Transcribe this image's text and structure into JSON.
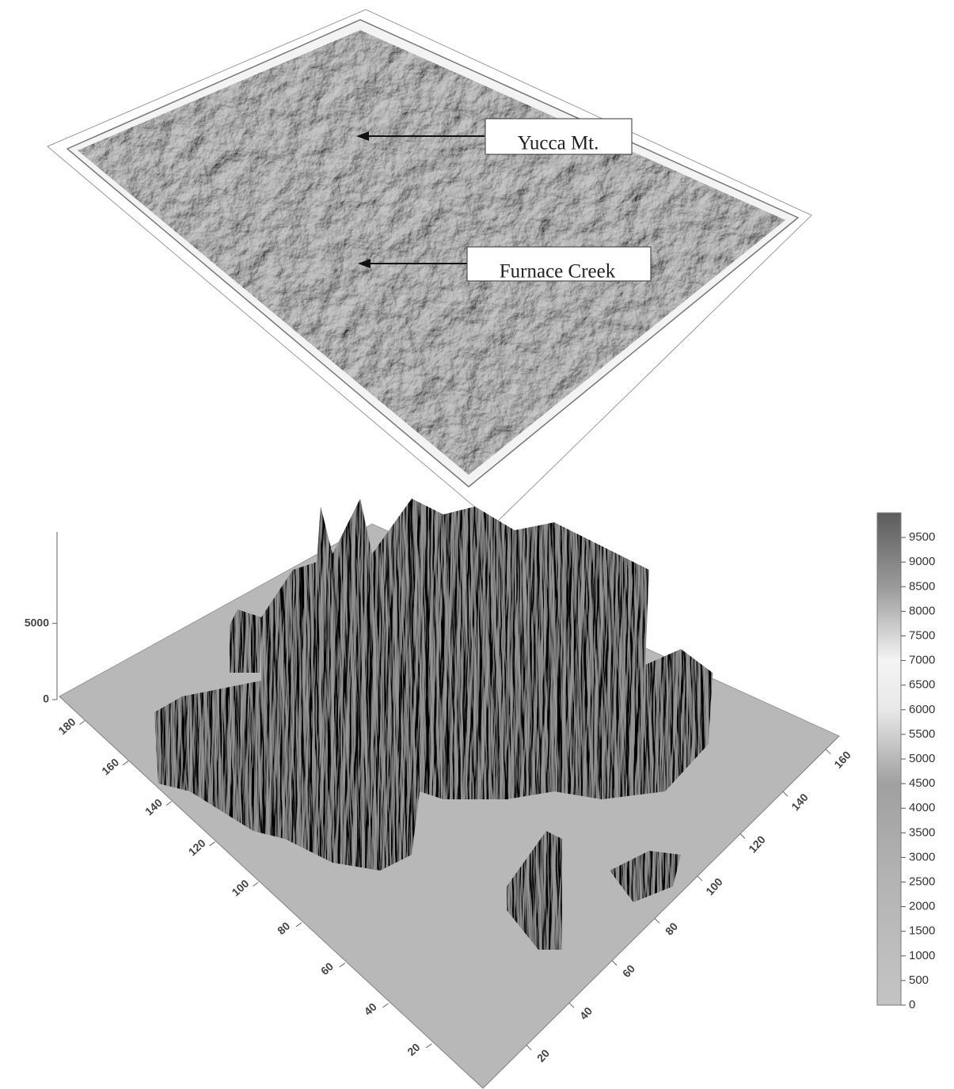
{
  "map": {
    "labels": [
      "Yucca Mt.",
      "Furnace Creek"
    ]
  },
  "chart_data": {
    "type": "surface",
    "zlim": [
      0,
      11000
    ],
    "zticks": [
      0,
      5000
    ],
    "xlim": [
      0,
      190
    ],
    "xticks": [
      180,
      160,
      140,
      120,
      100,
      80,
      60,
      40,
      20
    ],
    "ylim": [
      0,
      170
    ],
    "yticks": [
      20,
      40,
      60,
      80,
      100,
      120,
      140,
      160
    ],
    "colorbar": {
      "lim": [
        0,
        10000
      ],
      "ticks": [
        0,
        500,
        1000,
        1500,
        2000,
        2500,
        3000,
        3500,
        4000,
        4500,
        5000,
        5500,
        6000,
        6500,
        7000,
        7500,
        8000,
        8500,
        9000,
        9500
      ]
    }
  }
}
